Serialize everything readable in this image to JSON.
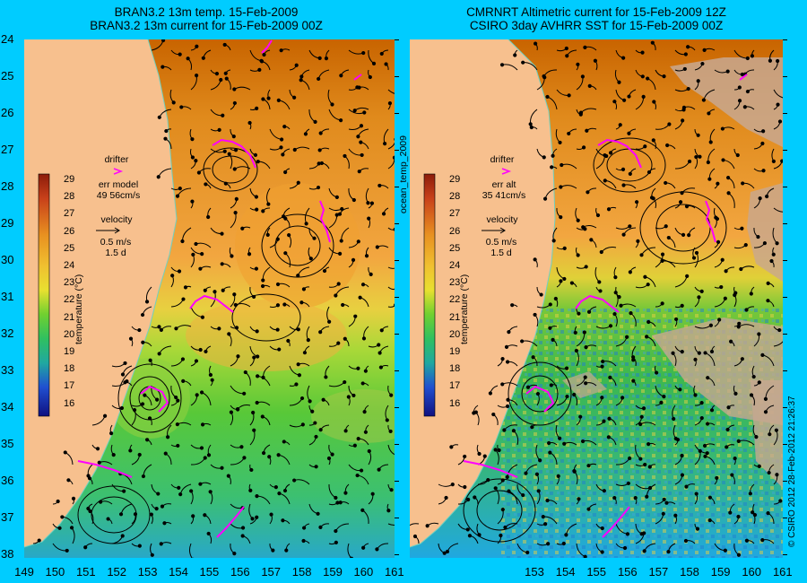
{
  "left_panel": {
    "title_line1": "BRAN3.2 13m temp. 15-Feb-2009",
    "title_line2": "BRAN3.2 13m current for 15-Feb-2009 00Z",
    "drifter_label": "drifter",
    "err_label": "err model",
    "err_value": "49 56cm/s",
    "velocity_label": "velocity",
    "velocity_value": "0.5 m/s",
    "velocity_days": "1.5 d",
    "colorbar_title": "temperature (°C)"
  },
  "right_panel": {
    "title_line1": "CMRNRT Altimetric current for 15-Feb-2009 12Z",
    "title_line2": "CSIRO 3day AVHRR SST for 15-Feb-2009 00Z",
    "drifter_label": "drifter",
    "err_label": "err alt",
    "err_value": "35 41cm/s",
    "velocity_label": "velocity",
    "velocity_value": "0.5 m/s",
    "velocity_days": "1.5 d",
    "colorbar_title": "temperature (°C)"
  },
  "center_vertical_label": "ocean_temp_2009",
  "right_vertical_label": "© CSIRO 2012   28-Feb-2012 21:26:37",
  "colorbar_ticks": [
    "29",
    "28",
    "27",
    "26",
    "25",
    "24",
    "23",
    "22",
    "21",
    "20",
    "19",
    "18",
    "17",
    "16"
  ],
  "lat_labels": [
    "24",
    "25",
    "26",
    "27",
    "28",
    "29",
    "30",
    "31",
    "32",
    "33",
    "34",
    "35",
    "36",
    "37",
    "38"
  ],
  "lon_labels_left": [
    "149",
    "150",
    "151",
    "152",
    "153",
    "154",
    "155",
    "156",
    "157",
    "158",
    "159",
    "160",
    "161"
  ],
  "lon_labels_right": [
    "153",
    "154",
    "155",
    "156",
    "157",
    "158",
    "159",
    "160",
    "161"
  ],
  "colors": {
    "background": "#00ccff",
    "land": "#f7c08e",
    "drifter": "#ff00ff",
    "warm": "#e89020",
    "green": "#50cc30",
    "cloud": "#c8a890"
  }
}
